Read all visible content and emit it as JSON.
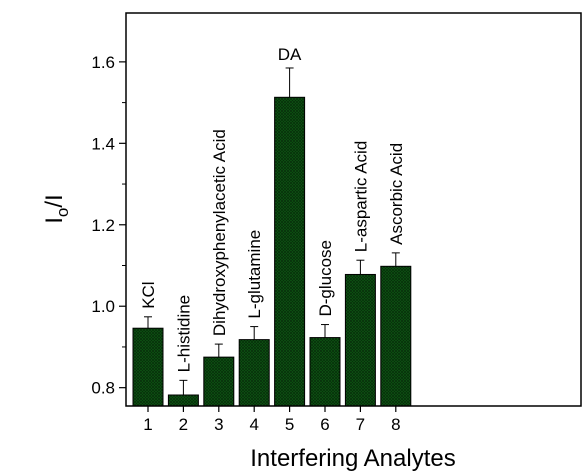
{
  "chart_data": {
    "type": "bar",
    "categories": [
      "1",
      "2",
      "3",
      "4",
      "5",
      "6",
      "7",
      "8"
    ],
    "bar_labels": [
      "KCl",
      "L-histidine",
      "Dihydroxyphenylacetic Acid",
      "L-glutamine",
      "DA",
      "D-glucose",
      "L-aspartic Acid",
      "Ascorbic Acid"
    ],
    "values": [
      0.946,
      0.782,
      0.875,
      0.918,
      1.513,
      0.923,
      1.078,
      1.098
    ],
    "errors": [
      0.028,
      0.036,
      0.032,
      0.032,
      0.072,
      0.032,
      0.035,
      0.033
    ],
    "xlabel": "Interfering Analytes",
    "ylabel_main": "I",
    "ylabel_sub": "o",
    "ylabel_suffix": "/I",
    "ylim": [
      0.755,
      1.72
    ],
    "yticks": [
      0.8,
      1.0,
      1.2,
      1.4,
      1.6
    ],
    "ytick_labels": [
      "0.8",
      "1.0",
      "1.2",
      "1.4",
      "1.6"
    ],
    "bar_color": "#0f5a14",
    "grid": false,
    "legend": "none"
  }
}
